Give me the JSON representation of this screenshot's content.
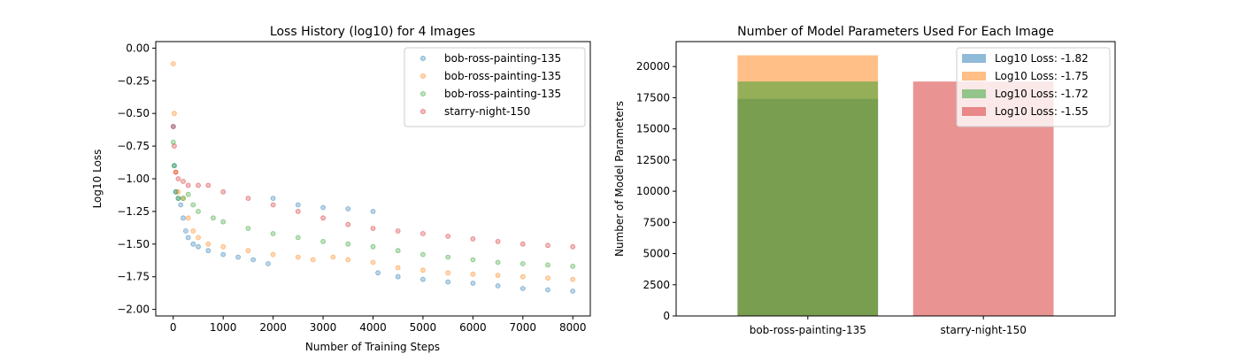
{
  "chart_data": [
    {
      "type": "scatter",
      "title": "Loss History (log10) for 4 Images",
      "xlabel": "Number of Training Steps",
      "ylabel": "Log10 Loss",
      "xlim": [
        -350,
        8350
      ],
      "ylim": [
        -2.05,
        0.05
      ],
      "xticks": [
        0,
        1000,
        2000,
        3000,
        4000,
        5000,
        6000,
        7000,
        8000
      ],
      "xtick_labels": [
        "0",
        "1000",
        "2000",
        "3000",
        "4000",
        "5000",
        "6000",
        "7000",
        "8000"
      ],
      "yticks": [
        0.0,
        -0.25,
        -0.5,
        -0.75,
        -1.0,
        -1.25,
        -1.5,
        -1.75,
        -2.0
      ],
      "ytick_labels": [
        "0.00",
        "−0.25",
        "−0.50",
        "−0.75",
        "−1.00",
        "−1.25",
        "−1.50",
        "−1.75",
        "−2.00"
      ],
      "legend_position": "top-right",
      "grid": false,
      "series": [
        {
          "name": "bob-ross-painting-135",
          "color": "#1f77b4",
          "points": [
            [
              0,
              -0.6
            ],
            [
              20,
              -0.9
            ],
            [
              50,
              -1.1
            ],
            [
              100,
              -1.15
            ],
            [
              150,
              -1.2
            ],
            [
              200,
              -1.3
            ],
            [
              250,
              -1.4
            ],
            [
              300,
              -1.45
            ],
            [
              400,
              -1.5
            ],
            [
              500,
              -1.52
            ],
            [
              700,
              -1.55
            ],
            [
              1000,
              -1.58
            ],
            [
              1300,
              -1.6
            ],
            [
              1600,
              -1.62
            ],
            [
              1900,
              -1.65
            ],
            [
              2000,
              -1.15
            ],
            [
              2500,
              -1.2
            ],
            [
              3000,
              -1.22
            ],
            [
              3500,
              -1.23
            ],
            [
              4000,
              -1.25
            ],
            [
              4100,
              -1.72
            ],
            [
              4500,
              -1.75
            ],
            [
              5000,
              -1.77
            ],
            [
              5500,
              -1.79
            ],
            [
              6000,
              -1.8
            ],
            [
              6500,
              -1.82
            ],
            [
              7000,
              -1.84
            ],
            [
              7500,
              -1.85
            ],
            [
              8000,
              -1.86
            ]
          ]
        },
        {
          "name": "bob-ross-painting-135",
          "color": "#ff7f0e",
          "points": [
            [
              0,
              -0.12
            ],
            [
              20,
              -0.5
            ],
            [
              50,
              -0.95
            ],
            [
              100,
              -1.1
            ],
            [
              200,
              -1.15
            ],
            [
              300,
              -1.3
            ],
            [
              400,
              -1.4
            ],
            [
              500,
              -1.45
            ],
            [
              700,
              -1.5
            ],
            [
              1000,
              -1.52
            ],
            [
              1500,
              -1.55
            ],
            [
              2000,
              -1.58
            ],
            [
              2500,
              -1.6
            ],
            [
              2800,
              -1.62
            ],
            [
              3200,
              -1.6
            ],
            [
              3500,
              -1.62
            ],
            [
              4000,
              -1.64
            ],
            [
              4500,
              -1.68
            ],
            [
              5000,
              -1.7
            ],
            [
              5500,
              -1.72
            ],
            [
              6000,
              -1.73
            ],
            [
              6500,
              -1.74
            ],
            [
              7000,
              -1.75
            ],
            [
              7500,
              -1.76
            ],
            [
              8000,
              -1.77
            ]
          ]
        },
        {
          "name": "bob-ross-painting-135",
          "color": "#2ca02c",
          "points": [
            [
              0,
              -0.72
            ],
            [
              20,
              -0.9
            ],
            [
              50,
              -1.1
            ],
            [
              100,
              -1.15
            ],
            [
              200,
              -1.15
            ],
            [
              300,
              -1.12
            ],
            [
              400,
              -1.2
            ],
            [
              500,
              -1.25
            ],
            [
              800,
              -1.3
            ],
            [
              1000,
              -1.33
            ],
            [
              1500,
              -1.38
            ],
            [
              2000,
              -1.42
            ],
            [
              2500,
              -1.45
            ],
            [
              3000,
              -1.48
            ],
            [
              3500,
              -1.5
            ],
            [
              4000,
              -1.52
            ],
            [
              4500,
              -1.55
            ],
            [
              5000,
              -1.58
            ],
            [
              5500,
              -1.6
            ],
            [
              6000,
              -1.62
            ],
            [
              6500,
              -1.64
            ],
            [
              7000,
              -1.65
            ],
            [
              7500,
              -1.66
            ],
            [
              8000,
              -1.67
            ]
          ]
        },
        {
          "name": "starry-night-150",
          "color": "#d62728",
          "points": [
            [
              0,
              -0.6
            ],
            [
              20,
              -0.75
            ],
            [
              50,
              -0.95
            ],
            [
              100,
              -1.0
            ],
            [
              200,
              -1.02
            ],
            [
              300,
              -1.05
            ],
            [
              500,
              -1.05
            ],
            [
              700,
              -1.05
            ],
            [
              1000,
              -1.1
            ],
            [
              1500,
              -1.15
            ],
            [
              2000,
              -1.2
            ],
            [
              2500,
              -1.25
            ],
            [
              3000,
              -1.3
            ],
            [
              3500,
              -1.35
            ],
            [
              4000,
              -1.38
            ],
            [
              4500,
              -1.4
            ],
            [
              5000,
              -1.42
            ],
            [
              5500,
              -1.44
            ],
            [
              6000,
              -1.46
            ],
            [
              6500,
              -1.48
            ],
            [
              7000,
              -1.5
            ],
            [
              7500,
              -1.51
            ],
            [
              8000,
              -1.52
            ]
          ]
        }
      ]
    },
    {
      "type": "bar",
      "title": "Number of Model Parameters Used For Each Image",
      "xlabel": "",
      "ylabel": "Number of Model Parameters",
      "categories": [
        "bob-ross-painting-135",
        "starry-night-150"
      ],
      "ylim": [
        0,
        22000
      ],
      "yticks": [
        0,
        2500,
        5000,
        7500,
        10000,
        12500,
        15000,
        17500,
        20000
      ],
      "ytick_labels": [
        "0",
        "2500",
        "5000",
        "7500",
        "10000",
        "12500",
        "15000",
        "17500",
        "20000"
      ],
      "legend_position": "top-right",
      "grid": false,
      "series": [
        {
          "name": "Log10 Loss: -1.82",
          "color": "#1f77b4",
          "alpha": 0.5,
          "category": "bob-ross-painting-135",
          "value": 17400
        },
        {
          "name": "Log10 Loss: -1.75",
          "color": "#ff7f0e",
          "alpha": 0.5,
          "category": "bob-ross-painting-135",
          "value": 20900
        },
        {
          "name": "Log10 Loss: -1.72",
          "color": "#2ca02c",
          "alpha": 0.5,
          "category": "bob-ross-painting-135",
          "value": 18800
        },
        {
          "name": "Log10 Loss: -1.55",
          "color": "#d62728",
          "alpha": 0.5,
          "category": "starry-night-150",
          "value": 18800
        }
      ]
    }
  ]
}
